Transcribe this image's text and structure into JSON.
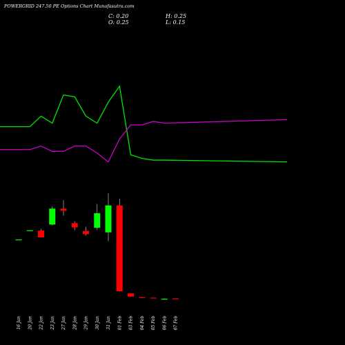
{
  "header": {
    "title": "POWERGRID 247.50 PE Options Chart Munafasutra.com",
    "ohlc": {
      "c_label": "C:",
      "c_value": "0.20",
      "h_label": "H:",
      "h_value": "0.25",
      "o_label": "O:",
      "o_value": "0.25",
      "l_label": "L:",
      "l_value": "0.15"
    }
  },
  "colors": {
    "up": "#00ff00",
    "down": "#ff0000",
    "line_green": "#00e600",
    "line_purple": "#cc00cc",
    "background": "#000000",
    "text": "#ffffff"
  },
  "chart_data": {
    "type": "candlestick",
    "categories": [
      "16 Jan",
      "20 Jan",
      "22 Jan",
      "23 Jan",
      "27 Jan",
      "28 Jan",
      "29 Jan",
      "30 Jan",
      "31 Jan",
      "01 Feb",
      "03 Feb",
      "04 Feb",
      "05 Feb",
      "06 Feb",
      "07 Feb"
    ],
    "candles": [
      {
        "o": 8.55,
        "h": 8.55,
        "l": 8.55,
        "c": 8.55
      },
      {
        "o": 9.85,
        "h": 9.85,
        "l": 9.85,
        "c": 9.85
      },
      {
        "o": 9.8,
        "h": 10.05,
        "l": 8.85,
        "c": 8.85
      },
      {
        "o": 10.65,
        "h": 13.2,
        "l": 10.55,
        "c": 12.9
      },
      {
        "o": 12.9,
        "h": 14.1,
        "l": 11.9,
        "c": 12.6
      },
      {
        "o": 10.85,
        "h": 11.1,
        "l": 9.85,
        "c": 10.25
      },
      {
        "o": 9.75,
        "h": 10.35,
        "l": 9.1,
        "c": 9.3
      },
      {
        "o": 10.2,
        "h": 13.55,
        "l": 9.9,
        "c": 12.25
      },
      {
        "o": 9.55,
        "h": 15.05,
        "l": 8.3,
        "c": 13.35
      },
      {
        "o": 13.35,
        "h": 14.3,
        "l": 1.2,
        "c": 1.25
      },
      {
        "o": 0.95,
        "h": 0.95,
        "l": 0.5,
        "c": 0.5
      },
      {
        "o": 0.42,
        "h": 0.45,
        "l": 0.35,
        "c": 0.4
      },
      {
        "o": 0.35,
        "h": 0.35,
        "l": 0.25,
        "c": 0.3
      },
      {
        "o": 0.2,
        "h": 0.25,
        "l": 0.15,
        "c": 0.2
      },
      {
        "o": 0.25,
        "h": 0.25,
        "l": 0.15,
        "c": 0.2
      }
    ],
    "ylim": [
      0,
      17.5
    ],
    "lines": [
      {
        "color": "#00e600",
        "values": [
          0.72,
          0.72,
          0.66,
          0.7,
          0.54,
          0.55,
          0.66,
          0.7,
          0.58,
          0.49,
          0.88,
          0.9,
          0.91,
          0.91,
          0.92
        ]
      },
      {
        "color": "#cc00cc",
        "values": [
          0.85,
          0.85,
          0.83,
          0.86,
          0.86,
          0.83,
          0.83,
          0.87,
          0.92,
          0.79,
          0.71,
          0.71,
          0.69,
          0.7,
          0.68
        ]
      }
    ]
  }
}
